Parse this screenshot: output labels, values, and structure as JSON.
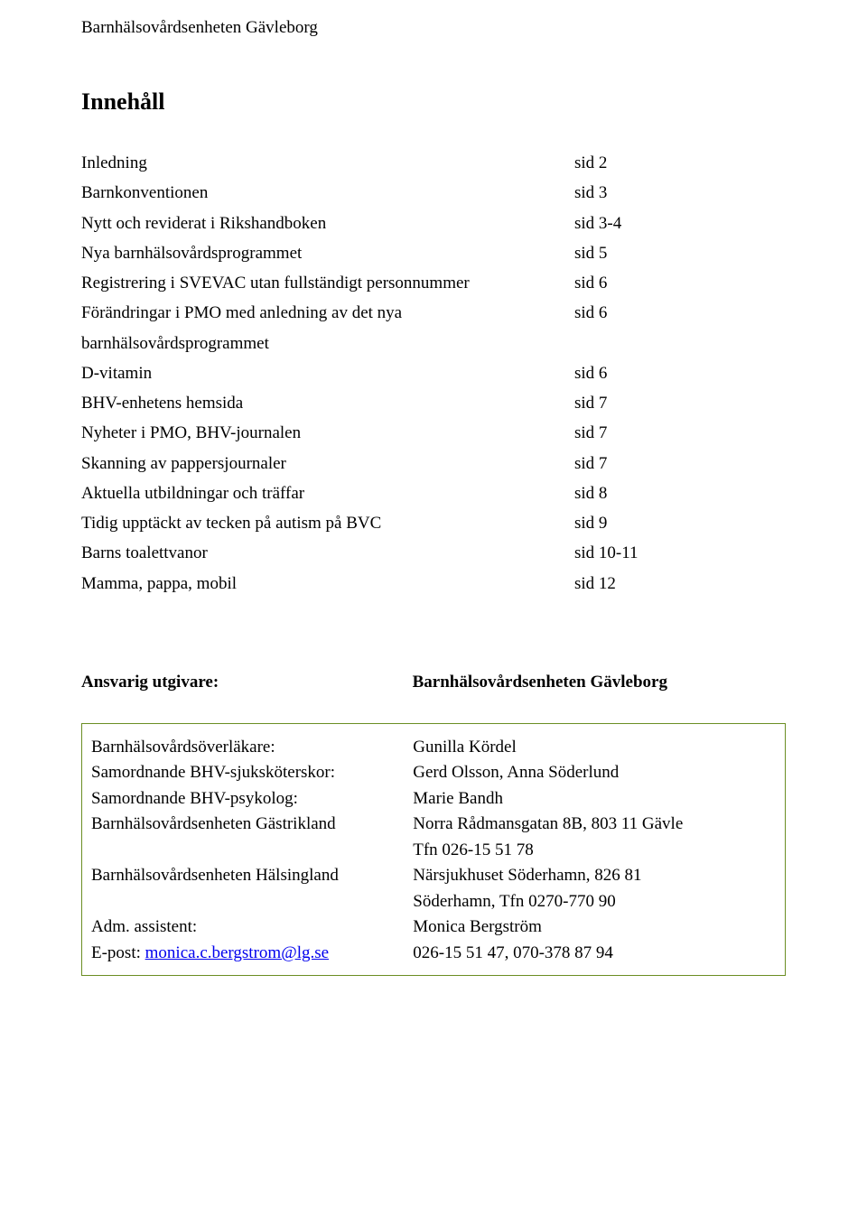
{
  "header": "Barnhälsovårdsenheten Gävleborg",
  "sectionTitle": "Innehåll",
  "toc": [
    {
      "label": "Inledning",
      "page": "sid 2"
    },
    {
      "label": "Barnkonventionen",
      "page": "sid 3"
    },
    {
      "label": "Nytt och reviderat i Rikshandboken",
      "page": "sid 3-4"
    },
    {
      "label": "Nya barnhälsovårdsprogrammet",
      "page": "sid 5"
    },
    {
      "label": "Registrering i SVEVAC utan fullständigt personnummer",
      "page": "sid 6"
    },
    {
      "label": "Förändringar i PMO med anledning av det nya barnhälsovårdsprogrammet",
      "page": "sid 6"
    },
    {
      "label": "D-vitamin",
      "page": "sid 6"
    },
    {
      "label": "BHV-enhetens hemsida",
      "page": "sid 7"
    },
    {
      "label": "Nyheter i PMO, BHV-journalen",
      "page": "sid 7"
    },
    {
      "label": "Skanning av pappersjournaler",
      "page": "sid 7"
    },
    {
      "label": "Aktuella utbildningar och träffar",
      "page": "sid 8"
    },
    {
      "label": "Tidig upptäckt av tecken på autism på BVC",
      "page": "sid 9"
    },
    {
      "label": "Barns toalettvanor",
      "page": "sid 10-11"
    },
    {
      "label": "Mamma, pappa, mobil",
      "page": "sid 12"
    }
  ],
  "publisher": {
    "label": "Ansvarig utgivare:",
    "value": "Barnhälsovårdsenheten Gävleborg"
  },
  "contacts": [
    {
      "label": "Barnhälsovårdsöverläkare:",
      "value": "Gunilla Kördel"
    },
    {
      "label": "Samordnande BHV-sjuksköterskor:",
      "value": "Gerd Olsson, Anna Söderlund"
    },
    {
      "label": "Samordnande BHV-psykolog:",
      "value": "Marie Bandh"
    },
    {
      "label": "Barnhälsovårdsenheten Gästrikland",
      "value": "Norra Rådmansgatan 8B, 803 11 Gävle"
    },
    {
      "label": "",
      "value": "Tfn 026-15 51 78"
    },
    {
      "label": "Barnhälsovårdsenheten Hälsingland",
      "value": "Närsjukhuset Söderhamn, 826 81"
    },
    {
      "label": "",
      "value": "Söderhamn, Tfn 0270-770 90"
    },
    {
      "label": "Adm. assistent:",
      "value": "Monica Bergström"
    }
  ],
  "emailRow": {
    "prefix": "E-post: ",
    "email": "monica.c.bergstrom@lg.se",
    "value": "026-15 51 47, 070-378 87 94"
  },
  "style": {
    "boxBorderColor": "#6b8e23",
    "linkColor": "#0000ee",
    "background": "#ffffff",
    "textColor": "#000000",
    "bodyFontSize": 19,
    "titleFontSize": 26
  }
}
